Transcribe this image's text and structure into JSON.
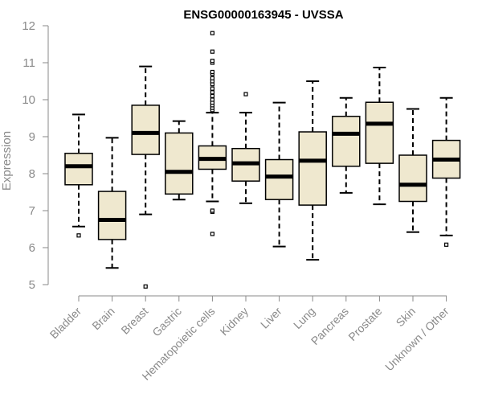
{
  "chart_data": {
    "type": "boxplot",
    "title": "ENSG00000163945 - UVSSA",
    "xlabel": "",
    "ylabel": "Expression",
    "ylim": [
      5,
      12
    ],
    "yticks": [
      5,
      6,
      7,
      8,
      9,
      10,
      11,
      12
    ],
    "grid": false,
    "colors": {
      "box_fill": "#efe8cf",
      "stroke": "#000000",
      "axis": "#8a8a8a"
    },
    "categories": [
      "Bladder",
      "Brain",
      "Breast",
      "Gastric",
      "Hematopoietic cells",
      "Kidney",
      "Liver",
      "Lung",
      "Pancreas",
      "Prostate",
      "Skin",
      "Unknown / Other"
    ],
    "boxes": [
      {
        "name": "Bladder",
        "whisker_low": 6.57,
        "q1": 7.7,
        "median": 8.2,
        "q3": 8.55,
        "whisker_high": 9.6,
        "outliers": [
          6.33
        ]
      },
      {
        "name": "Brain",
        "whisker_low": 5.45,
        "q1": 6.22,
        "median": 6.75,
        "q3": 7.52,
        "whisker_high": 8.97,
        "outliers": []
      },
      {
        "name": "Breast",
        "whisker_low": 6.9,
        "q1": 8.52,
        "median": 9.1,
        "q3": 9.85,
        "whisker_high": 10.9,
        "outliers": [
          4.95
        ]
      },
      {
        "name": "Gastric",
        "whisker_low": 7.3,
        "q1": 7.45,
        "median": 8.05,
        "q3": 9.1,
        "whisker_high": 9.42,
        "outliers": []
      },
      {
        "name": "Hematopoietic cells",
        "whisker_low": 7.25,
        "q1": 8.12,
        "median": 8.4,
        "q3": 8.75,
        "whisker_high": 9.65,
        "outliers": [
          6.37,
          6.97,
          7.0,
          9.72,
          9.78,
          9.85,
          9.92,
          10.0,
          10.1,
          10.2,
          10.3,
          10.42,
          10.5,
          10.58,
          10.7,
          10.75,
          11.0,
          11.05,
          11.3,
          11.8
        ]
      },
      {
        "name": "Kidney",
        "whisker_low": 7.2,
        "q1": 7.8,
        "median": 8.28,
        "q3": 8.68,
        "whisker_high": 9.65,
        "outliers": [
          10.15
        ]
      },
      {
        "name": "Liver",
        "whisker_low": 6.03,
        "q1": 7.3,
        "median": 7.92,
        "q3": 8.38,
        "whisker_high": 9.92,
        "outliers": []
      },
      {
        "name": "Lung",
        "whisker_low": 5.67,
        "q1": 7.15,
        "median": 8.35,
        "q3": 9.13,
        "whisker_high": 10.5,
        "outliers": []
      },
      {
        "name": "Pancreas",
        "whisker_low": 7.48,
        "q1": 8.2,
        "median": 9.08,
        "q3": 9.55,
        "whisker_high": 10.05,
        "outliers": []
      },
      {
        "name": "Prostate",
        "whisker_low": 7.17,
        "q1": 8.28,
        "median": 9.35,
        "q3": 9.93,
        "whisker_high": 10.87,
        "outliers": []
      },
      {
        "name": "Skin",
        "whisker_low": 6.42,
        "q1": 7.25,
        "median": 7.7,
        "q3": 8.5,
        "whisker_high": 9.75,
        "outliers": []
      },
      {
        "name": "Unknown / Other",
        "whisker_low": 6.33,
        "q1": 7.88,
        "median": 8.38,
        "q3": 8.9,
        "whisker_high": 10.05,
        "outliers": [
          6.08
        ]
      }
    ]
  }
}
